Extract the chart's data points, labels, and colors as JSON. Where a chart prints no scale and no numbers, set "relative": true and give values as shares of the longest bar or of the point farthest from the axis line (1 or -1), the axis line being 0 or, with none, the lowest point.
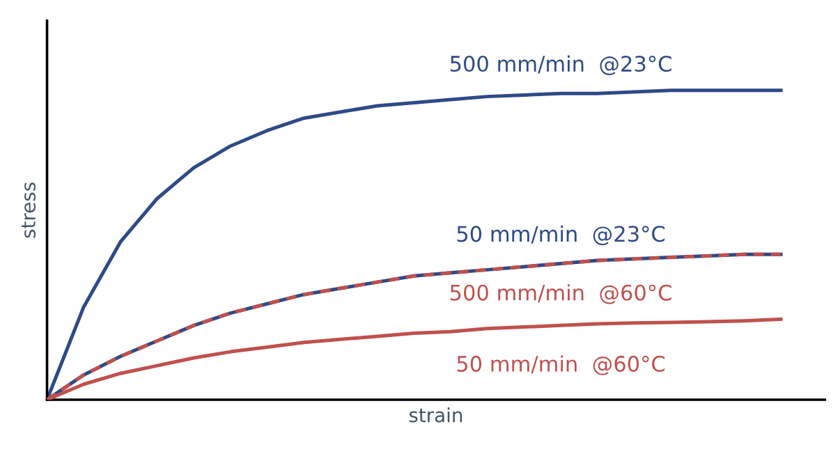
{
  "chart_data": {
    "type": "line",
    "relative": true,
    "xlabel": "strain",
    "ylabel": "stress",
    "legend": false,
    "marker": "none",
    "categories": [
      null,
      null,
      null,
      null,
      null,
      null,
      null,
      null,
      null,
      null,
      null,
      null,
      null,
      null,
      null,
      null,
      null,
      null,
      null,
      null,
      null
    ],
    "series": [
      {
        "name": "500 mm/min  @23°C",
        "color": "#2e4a87",
        "line_style": "solid",
        "values": [
          0,
          0.3,
          0.51,
          0.65,
          0.75,
          0.82,
          0.87,
          0.91,
          0.93,
          0.95,
          0.96,
          0.97,
          0.98,
          0.985,
          0.99,
          0.99,
          0.995,
          1,
          1,
          1,
          1
        ]
      },
      {
        "name": "50 mm/min  @23°C",
        "color": "#2e4a87",
        "line_style": "solid",
        "values": [
          0,
          0.08,
          0.14,
          0.19,
          0.24,
          0.28,
          0.31,
          0.34,
          0.36,
          0.38,
          0.4,
          0.41,
          0.42,
          0.43,
          0.44,
          0.45,
          0.455,
          0.46,
          0.465,
          0.47,
          0.47
        ]
      },
      {
        "name": "500 mm/min  @60°C",
        "color": "#c0504d",
        "line_style": "dashed",
        "values": [
          0,
          0.08,
          0.14,
          0.19,
          0.24,
          0.28,
          0.31,
          0.34,
          0.36,
          0.38,
          0.4,
          0.41,
          0.42,
          0.43,
          0.44,
          0.45,
          0.455,
          0.46,
          0.465,
          0.47,
          0.47
        ]
      },
      {
        "name": "50 mm/min  @60°C",
        "color": "#c0504d",
        "line_style": "solid",
        "values": [
          0,
          0.05,
          0.085,
          0.11,
          0.135,
          0.155,
          0.17,
          0.185,
          0.195,
          0.205,
          0.215,
          0.22,
          0.23,
          0.235,
          0.24,
          0.245,
          0.248,
          0.25,
          0.252,
          0.255,
          0.26
        ]
      }
    ]
  }
}
